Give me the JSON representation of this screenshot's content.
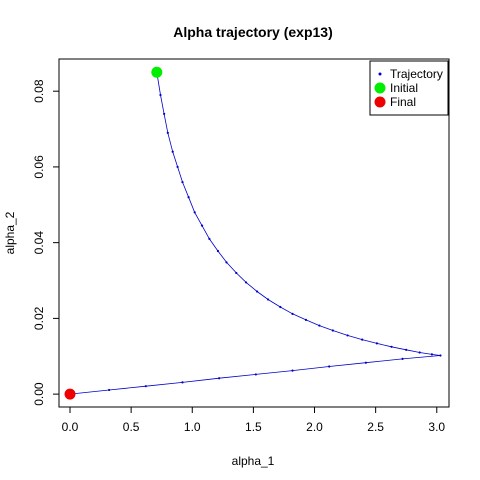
{
  "chart_data": {
    "type": "scatter",
    "title": "Alpha trajectory (exp13)",
    "xlabel": "alpha_1",
    "ylabel": "alpha_2",
    "xlim": [
      -0.09,
      3.1
    ],
    "ylim": [
      -0.0034,
      0.0885
    ],
    "x_ticks": [
      "0.0",
      "0.5",
      "1.0",
      "1.5",
      "2.0",
      "2.5",
      "3.0"
    ],
    "y_ticks": [
      "0.00",
      "0.02",
      "0.04",
      "0.06",
      "0.08"
    ],
    "grid": false,
    "legend_position": "top-right",
    "legend": [
      {
        "label": "Trajectory",
        "marker": "point",
        "color": "#0000cc"
      },
      {
        "label": "Initial",
        "marker": "circle",
        "color": "#00ee00"
      },
      {
        "label": "Final",
        "marker": "circle",
        "color": "#ee0000"
      }
    ],
    "series": [
      {
        "name": "Trajectory",
        "color": "#0000cc",
        "points": [
          [
            0.71,
            0.085
          ],
          [
            0.74,
            0.079
          ],
          [
            0.77,
            0.074
          ],
          [
            0.8,
            0.069
          ],
          [
            0.84,
            0.064
          ],
          [
            0.88,
            0.06
          ],
          [
            0.92,
            0.056
          ],
          [
            0.97,
            0.052
          ],
          [
            1.02,
            0.048
          ],
          [
            1.08,
            0.0445
          ],
          [
            1.14,
            0.041
          ],
          [
            1.21,
            0.0378
          ],
          [
            1.28,
            0.0348
          ],
          [
            1.36,
            0.032
          ],
          [
            1.44,
            0.0295
          ],
          [
            1.53,
            0.0271
          ],
          [
            1.62,
            0.025
          ],
          [
            1.72,
            0.023
          ],
          [
            1.82,
            0.0212
          ],
          [
            1.93,
            0.0196
          ],
          [
            2.04,
            0.0181
          ],
          [
            2.15,
            0.0168
          ],
          [
            2.27,
            0.0155
          ],
          [
            2.39,
            0.0144
          ],
          [
            2.51,
            0.0134
          ],
          [
            2.63,
            0.0125
          ],
          [
            2.75,
            0.0117
          ],
          [
            2.86,
            0.011
          ],
          [
            2.96,
            0.0105
          ],
          [
            3.03,
            0.0102
          ],
          [
            2.72,
            0.0093
          ],
          [
            2.42,
            0.0083
          ],
          [
            2.12,
            0.0073
          ],
          [
            1.82,
            0.0062
          ],
          [
            1.52,
            0.0052
          ],
          [
            1.22,
            0.0042
          ],
          [
            0.92,
            0.0031
          ],
          [
            0.62,
            0.0021
          ],
          [
            0.32,
            0.0011
          ],
          [
            0.0,
            0.0
          ]
        ]
      }
    ],
    "highlights": [
      {
        "name": "Initial",
        "x": 0.71,
        "y": 0.085,
        "color": "#00ee00"
      },
      {
        "name": "Final",
        "x": 0.0,
        "y": 0.0,
        "color": "#ee0000"
      }
    ]
  }
}
